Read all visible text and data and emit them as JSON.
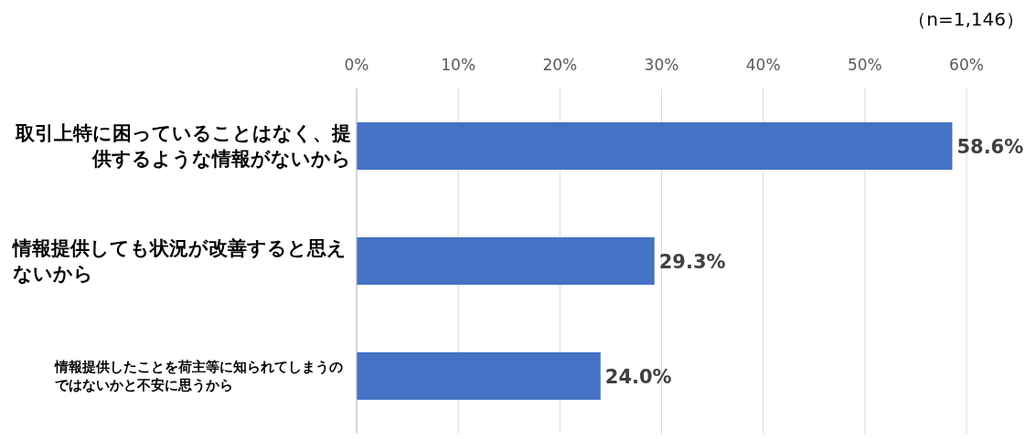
{
  "chart_data": {
    "type": "bar",
    "orientation": "horizontal",
    "categories": [
      "取引上特に困っていることはなく、提供するような情報がないから",
      "情報提供しても状況が改善すると思えないから",
      "情報提供したことを荷主等に知られてしまうのではないかと不安に思うから"
    ],
    "values": [
      58.6,
      29.3,
      24.0
    ],
    "value_labels": [
      "58.6%",
      "29.3%",
      "24.0%"
    ],
    "color": "#4472c4",
    "xlim": [
      0,
      60
    ],
    "xticks": [
      {
        "value": 0,
        "label": "0%"
      },
      {
        "value": 10,
        "label": "10%"
      },
      {
        "value": 20,
        "label": "20%"
      },
      {
        "value": 30,
        "label": "30%"
      },
      {
        "value": 40,
        "label": "40%"
      },
      {
        "value": 50,
        "label": "50%"
      },
      {
        "value": 60,
        "label": "60%"
      }
    ],
    "grid": "x",
    "annotations": [
      "（n=1,146）"
    ]
  }
}
